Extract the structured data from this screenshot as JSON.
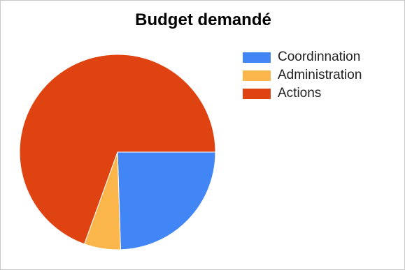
{
  "chart_data": {
    "type": "pie",
    "title": "Budget demandé",
    "categories": [
      "Coordinnation",
      "Administration",
      "Actions"
    ],
    "values": [
      24.5,
      6,
      69.5
    ],
    "colors": [
      "#4285f4",
      "#fbb64b",
      "#df4311"
    ],
    "start_angle_deg": 0,
    "direction": "clockwise",
    "legend_position": "right"
  }
}
